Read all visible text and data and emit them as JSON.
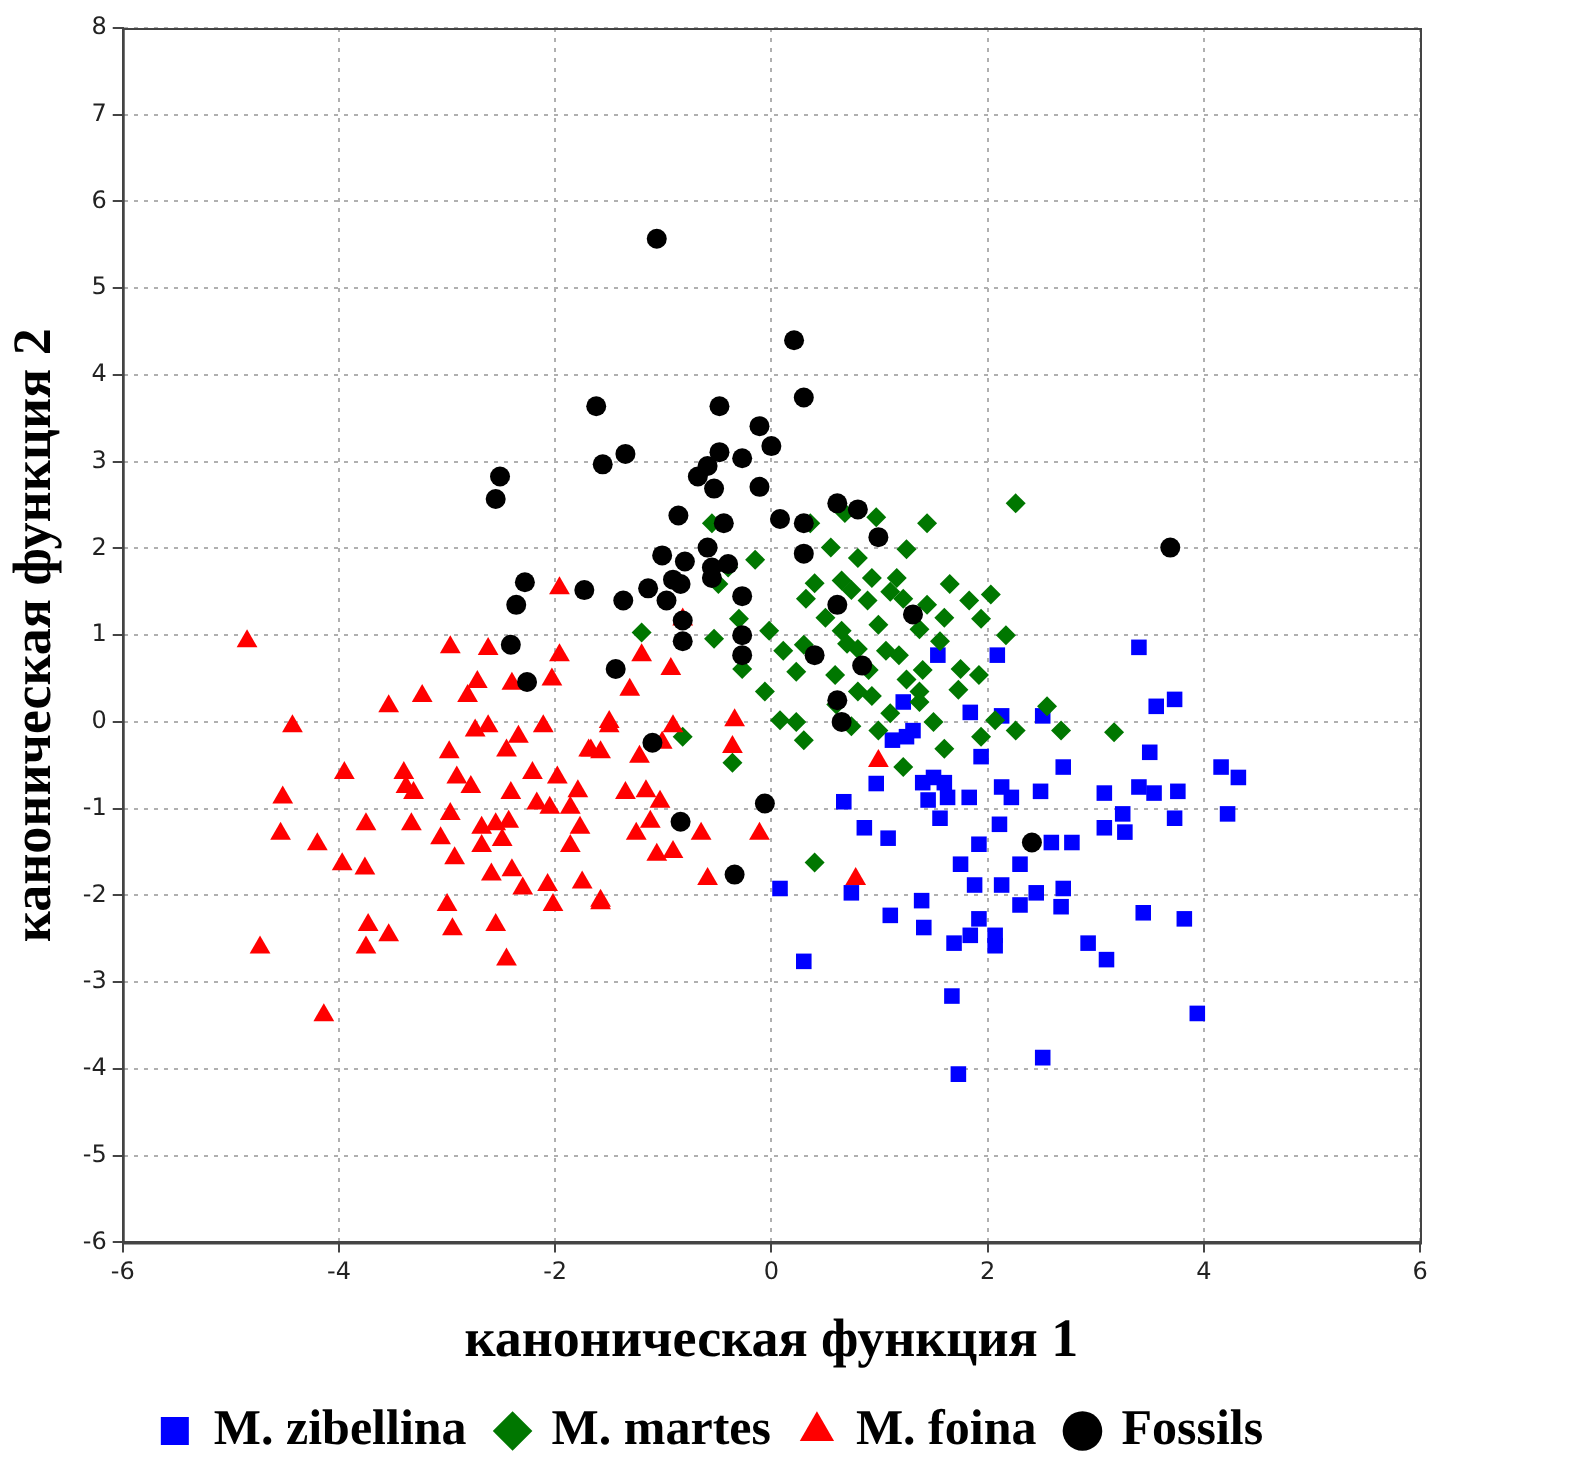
{
  "chart_data": {
    "type": "scatter",
    "xlabel": "каноническая функция 1",
    "ylabel": "каноническая функция 2",
    "xlim": [
      -6,
      6
    ],
    "ylim": [
      -6,
      8
    ],
    "xticks": [
      -6,
      -4,
      -2,
      0,
      2,
      4,
      6
    ],
    "yticks": [
      -6,
      -5,
      -4,
      -3,
      -2,
      -1,
      0,
      1,
      2,
      3,
      4,
      5,
      6,
      7,
      8
    ],
    "grid": true,
    "legend": "bottom",
    "series": [
      {
        "name": "M. zibellina",
        "color": "#0000ff",
        "marker": "square",
        "x": [
          3.4,
          2.09,
          1.54,
          3.73,
          3.56,
          1.22,
          1.84,
          2.13,
          2.51,
          1.25,
          1.12,
          3.5,
          1.94,
          2.7,
          4.16,
          4.32,
          0.97,
          1.5,
          1.63,
          1.83,
          1.56,
          2.13,
          2.22,
          2.49,
          3.08,
          3.4,
          3.54,
          3.76,
          3.25,
          3.73,
          4.22,
          2.11,
          3.08,
          3.27,
          0.67,
          0.86,
          1.08,
          1.92,
          2.59,
          2.78,
          1.75,
          1.88,
          2.13,
          2.3,
          2.45,
          2.7,
          2.68,
          2.3,
          0.08,
          0.74,
          1.39,
          1.1,
          1.41,
          1.92,
          2.07,
          1.84,
          1.69,
          2.07,
          3.44,
          3.82,
          2.93,
          3.1,
          0.3,
          1.67,
          3.94,
          2.51,
          1.73,
          1.45,
          1.6,
          1.4,
          1.31
        ],
        "values": [
          0.86,
          0.77,
          0.77,
          0.26,
          0.18,
          0.23,
          0.11,
          0.07,
          0.07,
          -0.17,
          -0.21,
          -0.35,
          -0.4,
          -0.52,
          -0.52,
          -0.64,
          -0.71,
          -0.64,
          -0.87,
          -0.87,
          -1.11,
          -0.75,
          -0.87,
          -0.8,
          -0.82,
          -0.75,
          -0.82,
          -0.8,
          -1.06,
          -1.11,
          -1.06,
          -1.18,
          -1.22,
          -1.27,
          -0.92,
          -1.22,
          -1.34,
          -1.41,
          -1.39,
          -1.39,
          -1.64,
          -1.88,
          -1.88,
          -1.64,
          -1.97,
          -1.92,
          -2.13,
          -2.11,
          -1.92,
          -1.97,
          -2.06,
          -2.23,
          -2.37,
          -2.27,
          -2.46,
          -2.46,
          -2.55,
          -2.58,
          -2.2,
          -2.27,
          -2.55,
          -2.74,
          -2.76,
          -3.16,
          -3.36,
          -3.87,
          -4.06,
          -0.9,
          -0.7,
          -0.7,
          -0.1
        ]
      },
      {
        "name": "M. martes",
        "color": "#007700",
        "marker": "diamond",
        "x": [
          2.26,
          -0.55,
          0.36,
          0.68,
          0.97,
          1.44,
          1.25,
          0.8,
          0.55,
          -0.15,
          -0.4,
          -0.49,
          0.65,
          0.93,
          1.16,
          1.65,
          2.03,
          1.83,
          0.32,
          0.74,
          0.89,
          1.22,
          1.44,
          1.94,
          -0.3,
          -0.02,
          0.65,
          0.99,
          1.37,
          1.56,
          2.17,
          -0.53,
          -1.2,
          0.11,
          0.3,
          0.8,
          1.06,
          1.18,
          0.23,
          -0.27,
          0.59,
          1.25,
          1.75,
          1.92,
          -0.06,
          0.8,
          0.93,
          1.37,
          1.73,
          0.08,
          0.23,
          0.74,
          0.99,
          1.5,
          1.37,
          2.07,
          2.26,
          2.55,
          0.3,
          -0.82,
          -0.36,
          1.22,
          0.4,
          1.94,
          2.68,
          3.17,
          1.6,
          0.5,
          0.7,
          1.1,
          1.4,
          0.9,
          0.4,
          1.6,
          1.1,
          0.6
        ],
        "values": [
          2.52,
          2.29,
          2.29,
          2.41,
          2.36,
          2.29,
          1.99,
          1.89,
          2.01,
          1.87,
          1.78,
          1.59,
          1.63,
          1.66,
          1.66,
          1.59,
          1.47,
          1.4,
          1.42,
          1.52,
          1.4,
          1.42,
          1.35,
          1.19,
          1.19,
          1.05,
          1.05,
          1.12,
          1.07,
          0.93,
          1.0,
          0.96,
          1.03,
          0.82,
          0.89,
          0.84,
          0.82,
          0.77,
          0.58,
          0.61,
          0.54,
          0.49,
          0.61,
          0.54,
          0.35,
          0.35,
          0.3,
          0.35,
          0.37,
          0.02,
          0.0,
          -0.05,
          -0.1,
          0.0,
          0.23,
          0.02,
          -0.1,
          0.18,
          -0.21,
          -0.17,
          -0.47,
          -0.52,
          -1.62,
          -0.17,
          -0.1,
          -0.12,
          -0.31,
          1.2,
          0.9,
          1.5,
          0.6,
          0.6,
          1.6,
          1.2,
          0.1,
          0.2
        ]
      },
      {
        "name": "M. foina",
        "color": "#ff0000",
        "marker": "triangle",
        "x": [
          -4.85,
          -1.96,
          -2.97,
          -2.62,
          -1.96,
          -2.72,
          -2.4,
          -2.03,
          -3.23,
          -3.54,
          -2.81,
          -4.43,
          -2.74,
          -2.62,
          -2.34,
          -2.11,
          -2.45,
          -1.5,
          -1.69,
          -1.58,
          -2.98,
          -3.95,
          -3.4,
          -3.38,
          -3.31,
          -2.91,
          -2.78,
          -2.21,
          -1.98,
          -1.79,
          -4.52,
          -2.41,
          -2.17,
          -2.05,
          -1.86,
          -2.97,
          -3.75,
          -3.33,
          -2.68,
          -2.55,
          -2.43,
          -4.54,
          -1.77,
          -3.06,
          -2.68,
          -2.49,
          -4.2,
          -1.86,
          -3.97,
          -3.76,
          -2.93,
          -2.59,
          -2.4,
          -2.3,
          -2.07,
          -2.02,
          -1.75,
          -1.58,
          -3.0,
          -2.95,
          -2.55,
          -3.73,
          -3.75,
          -3.54,
          -4.73,
          -2.45,
          -4.14,
          -0.82,
          -1.2,
          -0.93,
          -1.31,
          -1.5,
          -0.91,
          -0.34,
          -0.36,
          -1.01,
          -1.22,
          -1.67,
          -1.35,
          -1.16,
          -1.03,
          -1.12,
          -1.25,
          -0.65,
          -0.11,
          -1.06,
          -0.91,
          -0.59,
          -1.58,
          0.99,
          0.78
        ],
        "values": [
          0.93,
          1.54,
          0.86,
          0.84,
          0.77,
          0.46,
          0.44,
          0.49,
          0.3,
          0.18,
          0.3,
          -0.05,
          -0.1,
          -0.05,
          -0.17,
          -0.05,
          -0.33,
          -0.05,
          -0.33,
          -0.35,
          -0.35,
          -0.59,
          -0.59,
          -0.75,
          -0.82,
          -0.64,
          -0.75,
          -0.59,
          -0.64,
          -0.8,
          -0.87,
          -0.82,
          -0.94,
          -0.99,
          -0.99,
          -1.06,
          -1.18,
          -1.18,
          -1.22,
          -1.18,
          -1.15,
          -1.29,
          -1.22,
          -1.34,
          -1.43,
          -1.36,
          -1.41,
          -1.43,
          -1.64,
          -1.69,
          -1.57,
          -1.76,
          -1.71,
          -1.92,
          -1.88,
          -2.11,
          -1.85,
          -2.06,
          -2.11,
          -2.39,
          -2.34,
          -2.34,
          -2.6,
          -2.46,
          -2.6,
          -2.74,
          -3.38,
          1.18,
          0.77,
          0.61,
          0.37,
          0.0,
          -0.05,
          0.02,
          -0.29,
          -0.24,
          -0.4,
          -0.33,
          -0.82,
          -0.8,
          -0.92,
          -1.15,
          -1.29,
          -1.29,
          -1.29,
          -1.53,
          -1.5,
          -1.81,
          -2.09,
          -0.45,
          -1.81
        ]
      },
      {
        "name": "Fossils",
        "color": "#000000",
        "marker": "circle",
        "x": [
          -1.06,
          0.21,
          0.3,
          -1.62,
          -0.48,
          -0.11,
          0.0,
          -1.35,
          -1.56,
          -0.27,
          -0.48,
          -0.59,
          -0.68,
          -0.53,
          -0.11,
          -2.51,
          -2.55,
          -0.86,
          0.08,
          0.3,
          0.3,
          -1.01,
          -0.8,
          -0.59,
          -0.55,
          -2.28,
          -1.73,
          -1.37,
          -1.14,
          -0.97,
          -0.84,
          -0.27,
          -2.36,
          0.61,
          0.61,
          0.8,
          0.99,
          -0.4,
          -0.91,
          -0.55,
          -0.82,
          -0.27,
          0.4,
          -1.44,
          -0.82,
          -0.27,
          0.84,
          1.31,
          0.61,
          0.65,
          -1.1,
          -0.06,
          -0.84,
          -0.34,
          2.41,
          3.69,
          -2.41,
          -2.26,
          -0.44
        ],
        "values": [
          5.57,
          4.4,
          3.74,
          3.64,
          3.64,
          3.41,
          3.18,
          3.09,
          2.97,
          3.04,
          3.11,
          2.95,
          2.83,
          2.69,
          2.71,
          2.83,
          2.57,
          2.38,
          2.34,
          2.29,
          1.94,
          1.92,
          1.85,
          2.01,
          1.78,
          1.61,
          1.52,
          1.4,
          1.54,
          1.4,
          1.59,
          1.45,
          1.35,
          1.35,
          2.52,
          2.45,
          2.13,
          1.82,
          1.64,
          1.66,
          1.17,
          1.0,
          0.77,
          0.61,
          0.93,
          0.77,
          0.65,
          1.24,
          0.25,
          0.0,
          -0.24,
          -0.94,
          -1.15,
          -1.76,
          -1.39,
          2.01,
          0.89,
          0.46,
          2.29
        ]
      }
    ]
  }
}
